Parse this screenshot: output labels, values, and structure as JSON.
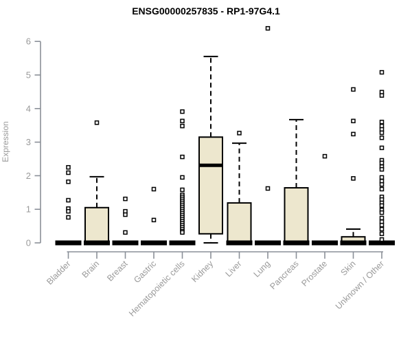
{
  "chart_data": {
    "type": "boxplot",
    "title": "ENSG00000257835 - RP1-97G4.1",
    "ylabel": "Expression",
    "xlabel": "",
    "ylim": [
      0,
      6
    ],
    "yticks": [
      0,
      1,
      2,
      3,
      4,
      5,
      6
    ],
    "grid": false,
    "legend": false,
    "colors": {
      "box_fill": "#EDE7CE",
      "box_stroke": "#000000",
      "median": "#000000",
      "axis": "#8a8f98",
      "tick_label": "#9a9a9a",
      "outlier_fill": "#ffffff",
      "outlier_stroke": "#000000"
    },
    "categories": [
      "Bladder",
      "Brain",
      "Breast",
      "Gastric",
      "Hematopoietic cells",
      "Kidney",
      "Liver",
      "Lung",
      "Pancreas",
      "Prostate",
      "Skin",
      "Unknown / Other"
    ],
    "series": [
      {
        "category": "Bladder",
        "q1": 0,
        "median": 0,
        "q3": 0,
        "whisker_low": 0,
        "whisker_high": 0,
        "outliers": [
          2.25,
          2.09,
          1.82,
          1.27,
          1.02,
          0.94,
          0.76
        ]
      },
      {
        "category": "Brain",
        "q1": 0,
        "median": 0,
        "q3": 1.05,
        "whisker_low": 0,
        "whisker_high": 1.97,
        "outliers": [
          3.58
        ]
      },
      {
        "category": "Breast",
        "q1": 0,
        "median": 0,
        "q3": 0,
        "whisker_low": 0,
        "whisker_high": 0,
        "outliers": [
          1.31,
          0.94,
          0.84,
          0.31
        ]
      },
      {
        "category": "Gastric",
        "q1": 0,
        "median": 0,
        "q3": 0,
        "whisker_low": 0,
        "whisker_high": 0,
        "outliers": [
          1.6,
          0.68
        ]
      },
      {
        "category": "Hematopoietic cells",
        "q1": 0,
        "median": 0,
        "q3": 0,
        "whisker_low": 0,
        "whisker_high": 0,
        "outliers": [
          3.91,
          3.63,
          3.48,
          2.56,
          1.95,
          1.58,
          1.43,
          1.37,
          1.31,
          1.25,
          1.19,
          1.13,
          1.07,
          1.01,
          0.95,
          0.89,
          0.83,
          0.77,
          0.71,
          0.65,
          0.59,
          0.53,
          0.47,
          0.41,
          0.35,
          0.31
        ]
      },
      {
        "category": "Kidney",
        "q1": 0.27,
        "median": 2.31,
        "q3": 3.15,
        "whisker_low": 0,
        "whisker_high": 5.55,
        "outliers": []
      },
      {
        "category": "Liver",
        "q1": 0,
        "median": 0,
        "q3": 1.19,
        "whisker_low": 0,
        "whisker_high": 2.97,
        "outliers": [
          3.27
        ]
      },
      {
        "category": "Lung",
        "q1": 0,
        "median": 0,
        "q3": 0,
        "whisker_low": 0,
        "whisker_high": 0,
        "outliers": [
          6.39,
          1.62
        ]
      },
      {
        "category": "Pancreas",
        "q1": 0,
        "median": 0,
        "q3": 1.64,
        "whisker_low": 0,
        "whisker_high": 3.67,
        "outliers": []
      },
      {
        "category": "Prostate",
        "q1": 0,
        "median": 0,
        "q3": 0,
        "whisker_low": 0,
        "whisker_high": 0,
        "outliers": [
          2.58
        ]
      },
      {
        "category": "Skin",
        "q1": 0,
        "median": 0,
        "q3": 0.18,
        "whisker_low": 0,
        "whisker_high": 0.41,
        "outliers": [
          4.57,
          3.63,
          3.24,
          1.92
        ]
      },
      {
        "category": "Unknown / Other",
        "q1": 0,
        "median": 0,
        "q3": 0,
        "whisker_low": 0,
        "whisker_high": 0,
        "outliers": [
          5.08,
          4.49,
          4.39,
          3.6,
          3.48,
          3.38,
          3.28,
          3.13,
          2.83,
          2.46,
          2.38,
          2.27,
          2.19,
          1.95,
          1.84,
          1.74,
          1.6,
          1.37,
          1.29,
          1.19,
          1.11,
          0.98,
          0.9,
          0.74,
          0.63,
          0.53,
          0.41,
          0.27,
          0.1
        ]
      }
    ]
  }
}
